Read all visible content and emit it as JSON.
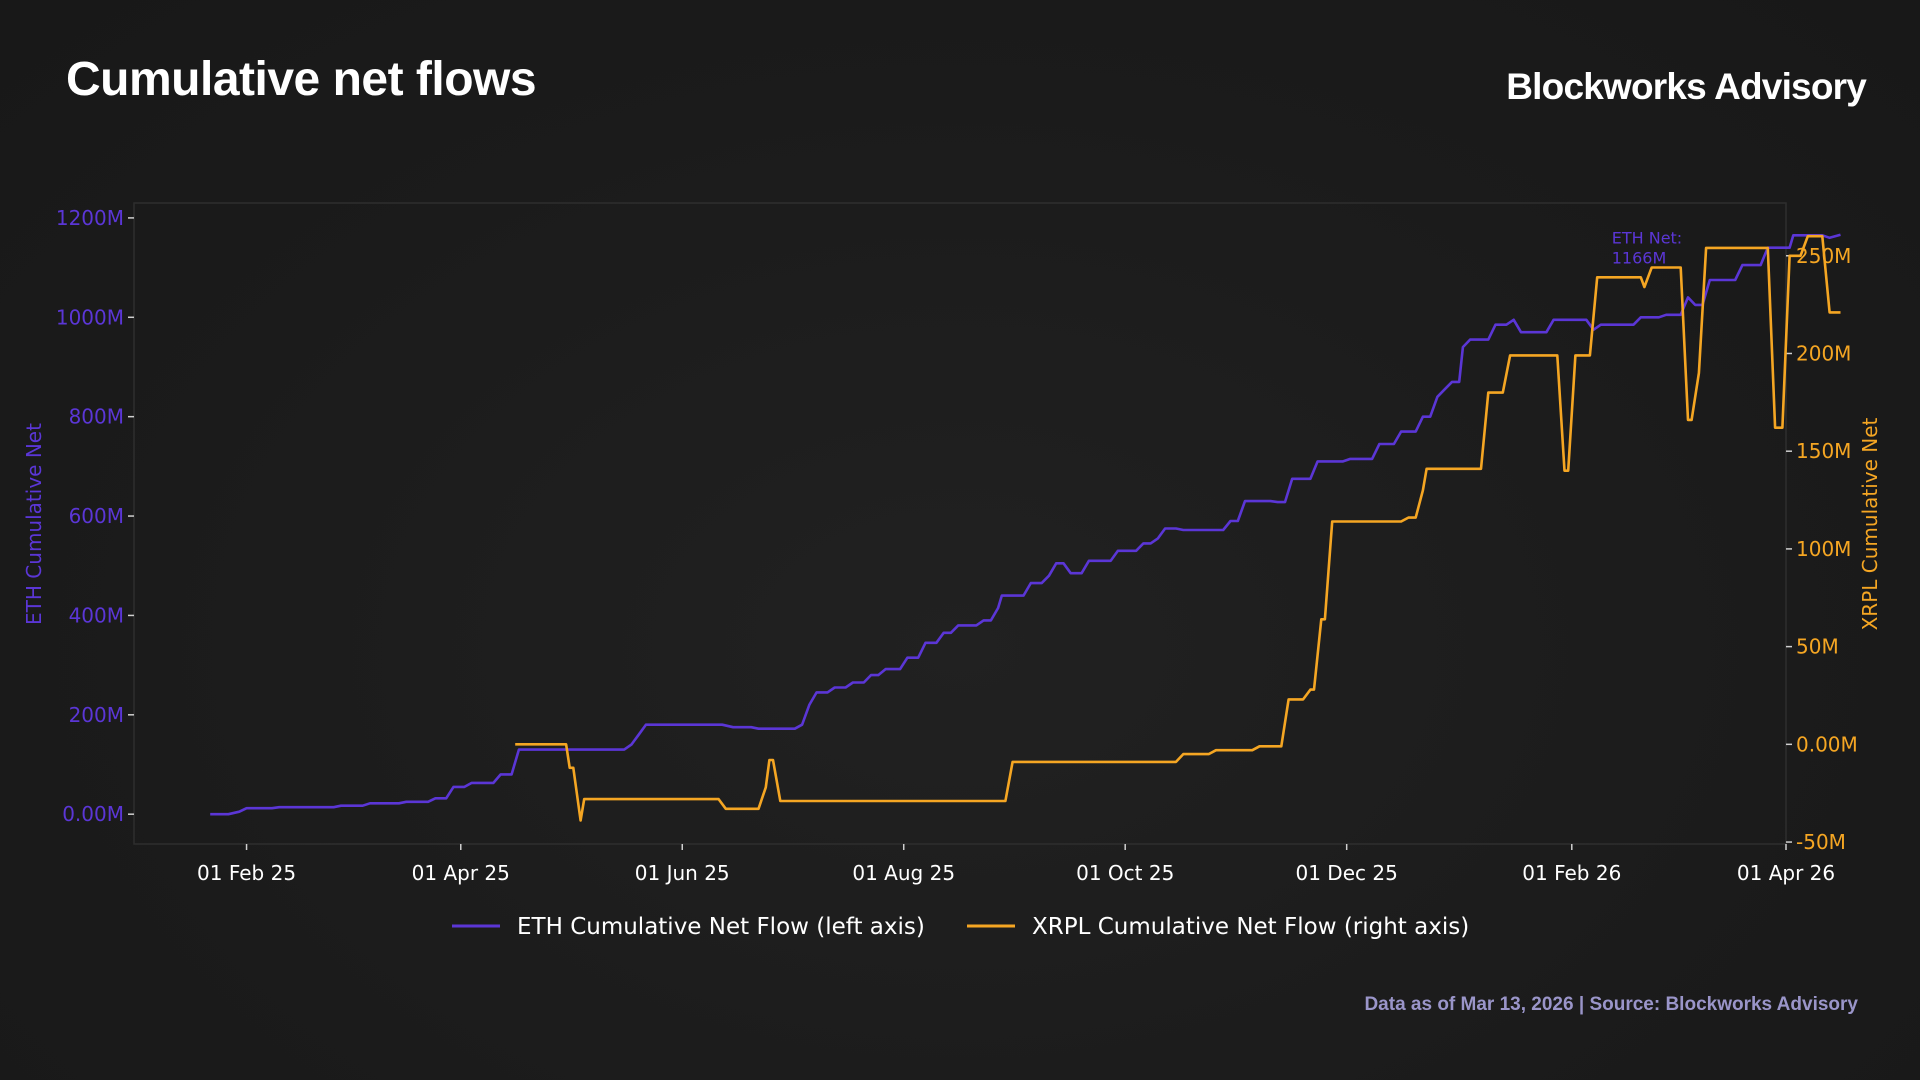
{
  "header": {
    "title": "Cumulative net flows",
    "brand": "Blockworks Advisory"
  },
  "footer": {
    "note": "Data as of Mar 13, 2026 | Source: Blockworks Advisory"
  },
  "colors": {
    "eth": "#5b36d6",
    "xrpl": "#f5a623",
    "axis": "#cfcfcf",
    "frame": "#2e2e2e",
    "background": "#1c1c1c"
  },
  "chart_data": {
    "type": "line",
    "x_axis": {
      "type": "date",
      "ticks": [
        "2025-02-01",
        "2025-04-01",
        "2025-06-01",
        "2025-08-01",
        "2025-10-01",
        "2025-12-01",
        "2026-02-01",
        "2026-04-01"
      ],
      "tick_labels": [
        "01 Feb 25",
        "01 Apr 25",
        "01 Jun 25",
        "01 Aug 25",
        "01 Oct 25",
        "01 Dec 25",
        "01 Feb 26",
        "01 Apr 26"
      ],
      "range": [
        "2025-01-01",
        "2026-04-01"
      ]
    },
    "y_left": {
      "label": "ETH Cumulative Net",
      "range": [
        -60,
        1230
      ],
      "ticks": [
        0,
        200,
        400,
        600,
        800,
        1000,
        1200
      ],
      "tick_labels": [
        "0.00M",
        "200M",
        "400M",
        "600M",
        "800M",
        "1000M",
        "1200M"
      ]
    },
    "y_right": {
      "label": "XRPL Cumulative Net",
      "range": [
        -51,
        277
      ],
      "ticks": [
        -50,
        0,
        50,
        100,
        150,
        200,
        250
      ],
      "tick_labels": [
        "-50M",
        "0.00M",
        "50M",
        "100M",
        "150M",
        "200M",
        "250M"
      ]
    },
    "annotation": {
      "line1": "ETH Net:",
      "line2": "1166M",
      "x": "2026-02-12",
      "y": 1148
    },
    "legend_position": "bottom",
    "grid": false,
    "series": [
      {
        "name": "ETH Cumulative Net Flow (left axis)",
        "axis": "left",
        "color": "#5b36d6",
        "points": [
          [
            "2025-01-22",
            0
          ],
          [
            "2025-01-27",
            0
          ],
          [
            "2025-01-30",
            5
          ],
          [
            "2025-02-01",
            12
          ],
          [
            "2025-02-08",
            12
          ],
          [
            "2025-02-10",
            14
          ],
          [
            "2025-02-25",
            14
          ],
          [
            "2025-02-27",
            17
          ],
          [
            "2025-03-05",
            17
          ],
          [
            "2025-03-07",
            22
          ],
          [
            "2025-03-15",
            22
          ],
          [
            "2025-03-17",
            25
          ],
          [
            "2025-03-23",
            25
          ],
          [
            "2025-03-25",
            32
          ],
          [
            "2025-03-28",
            32
          ],
          [
            "2025-03-30",
            55
          ],
          [
            "2025-04-02",
            55
          ],
          [
            "2025-04-04",
            63
          ],
          [
            "2025-04-10",
            63
          ],
          [
            "2025-04-12",
            80
          ],
          [
            "2025-04-15",
            80
          ],
          [
            "2025-04-17",
            130
          ],
          [
            "2025-05-16",
            130
          ],
          [
            "2025-05-18",
            140
          ],
          [
            "2025-05-20",
            160
          ],
          [
            "2025-05-22",
            180
          ],
          [
            "2025-06-12",
            180
          ],
          [
            "2025-06-15",
            175
          ],
          [
            "2025-06-20",
            175
          ],
          [
            "2025-06-22",
            172
          ],
          [
            "2025-07-02",
            172
          ],
          [
            "2025-07-04",
            180
          ],
          [
            "2025-07-06",
            220
          ],
          [
            "2025-07-08",
            245
          ],
          [
            "2025-07-11",
            245
          ],
          [
            "2025-07-13",
            255
          ],
          [
            "2025-07-16",
            255
          ],
          [
            "2025-07-18",
            265
          ],
          [
            "2025-07-21",
            265
          ],
          [
            "2025-07-23",
            280
          ],
          [
            "2025-07-25",
            280
          ],
          [
            "2025-07-27",
            292
          ],
          [
            "2025-07-31",
            292
          ],
          [
            "2025-08-02",
            315
          ],
          [
            "2025-08-05",
            315
          ],
          [
            "2025-08-07",
            345
          ],
          [
            "2025-08-10",
            345
          ],
          [
            "2025-08-12",
            365
          ],
          [
            "2025-08-14",
            365
          ],
          [
            "2025-08-16",
            380
          ],
          [
            "2025-08-21",
            380
          ],
          [
            "2025-08-23",
            390
          ],
          [
            "2025-08-25",
            390
          ],
          [
            "2025-08-27",
            415
          ],
          [
            "2025-08-28",
            440
          ],
          [
            "2025-09-03",
            440
          ],
          [
            "2025-09-05",
            465
          ],
          [
            "2025-09-08",
            465
          ],
          [
            "2025-09-10",
            480
          ],
          [
            "2025-09-12",
            505
          ],
          [
            "2025-09-14",
            505
          ],
          [
            "2025-09-16",
            485
          ],
          [
            "2025-09-19",
            485
          ],
          [
            "2025-09-21",
            510
          ],
          [
            "2025-09-27",
            510
          ],
          [
            "2025-09-29",
            530
          ],
          [
            "2025-10-04",
            530
          ],
          [
            "2025-10-06",
            545
          ],
          [
            "2025-10-08",
            545
          ],
          [
            "2025-10-10",
            555
          ],
          [
            "2025-10-12",
            575
          ],
          [
            "2025-10-15",
            575
          ],
          [
            "2025-10-17",
            572
          ],
          [
            "2025-10-28",
            572
          ],
          [
            "2025-10-30",
            590
          ],
          [
            "2025-11-01",
            590
          ],
          [
            "2025-11-03",
            630
          ],
          [
            "2025-11-10",
            630
          ],
          [
            "2025-11-12",
            628
          ],
          [
            "2025-11-14",
            628
          ],
          [
            "2025-11-16",
            675
          ],
          [
            "2025-11-21",
            675
          ],
          [
            "2025-11-23",
            710
          ],
          [
            "2025-11-30",
            710
          ],
          [
            "2025-12-02",
            715
          ],
          [
            "2025-12-08",
            715
          ],
          [
            "2025-12-10",
            745
          ],
          [
            "2025-12-14",
            745
          ],
          [
            "2025-12-16",
            770
          ],
          [
            "2025-12-20",
            770
          ],
          [
            "2025-12-22",
            800
          ],
          [
            "2025-12-24",
            800
          ],
          [
            "2025-12-26",
            840
          ],
          [
            "2025-12-28",
            855
          ],
          [
            "2025-12-30",
            870
          ],
          [
            "2026-01-01",
            870
          ],
          [
            "2026-01-02",
            940
          ],
          [
            "2026-01-04",
            955
          ],
          [
            "2026-01-09",
            955
          ],
          [
            "2026-01-11",
            985
          ],
          [
            "2026-01-14",
            985
          ],
          [
            "2026-01-16",
            995
          ],
          [
            "2026-01-18",
            970
          ],
          [
            "2026-01-25",
            970
          ],
          [
            "2026-01-27",
            995
          ],
          [
            "2026-02-05",
            995
          ],
          [
            "2026-02-07",
            975
          ],
          [
            "2026-02-09",
            985
          ],
          [
            "2026-02-18",
            985
          ],
          [
            "2026-02-20",
            1000
          ],
          [
            "2026-02-25",
            1000
          ],
          [
            "2026-02-27",
            1005
          ],
          [
            "2026-03-03",
            1005
          ],
          [
            "2026-03-05",
            1040
          ],
          [
            "2026-03-07",
            1025
          ],
          [
            "2026-03-09",
            1025
          ],
          [
            "2026-03-11",
            1075
          ],
          [
            "2026-03-18",
            1075
          ],
          [
            "2026-03-20",
            1105
          ],
          [
            "2026-03-25",
            1105
          ],
          [
            "2026-03-27",
            1140
          ],
          [
            "2026-04-02",
            1140
          ],
          [
            "2026-04-03",
            1165
          ],
          [
            "2026-04-11",
            1165
          ],
          [
            "2026-04-13",
            1160
          ],
          [
            "2026-04-16",
            1166
          ]
        ]
      },
      {
        "name": "XRPL Cumulative Net Flow (right axis)",
        "axis": "right",
        "color": "#f5a623",
        "points": [
          [
            "2025-04-16",
            0
          ],
          [
            "2025-04-30",
            0
          ],
          [
            "2025-05-01",
            -12
          ],
          [
            "2025-05-02",
            -12
          ],
          [
            "2025-05-04",
            -39
          ],
          [
            "2025-05-05",
            -28
          ],
          [
            "2025-06-11",
            -28
          ],
          [
            "2025-06-13",
            -33
          ],
          [
            "2025-06-22",
            -33
          ],
          [
            "2025-06-24",
            -22
          ],
          [
            "2025-06-25",
            -8
          ],
          [
            "2025-06-26",
            -8
          ],
          [
            "2025-06-28",
            -29
          ],
          [
            "2025-08-29",
            -29
          ],
          [
            "2025-08-31",
            -9
          ],
          [
            "2025-10-15",
            -9
          ],
          [
            "2025-10-17",
            -5
          ],
          [
            "2025-10-24",
            -5
          ],
          [
            "2025-10-26",
            -3
          ],
          [
            "2025-11-05",
            -3
          ],
          [
            "2025-11-07",
            -1
          ],
          [
            "2025-11-13",
            -1
          ],
          [
            "2025-11-15",
            23
          ],
          [
            "2025-11-19",
            23
          ],
          [
            "2025-11-21",
            28
          ],
          [
            "2025-11-22",
            28
          ],
          [
            "2025-11-24",
            64
          ],
          [
            "2025-11-25",
            64
          ],
          [
            "2025-11-27",
            114
          ],
          [
            "2025-12-16",
            114
          ],
          [
            "2025-12-18",
            116
          ],
          [
            "2025-12-20",
            116
          ],
          [
            "2025-12-22",
            130
          ],
          [
            "2025-12-23",
            141
          ],
          [
            "2026-01-07",
            141
          ],
          [
            "2026-01-09",
            180
          ],
          [
            "2026-01-13",
            180
          ],
          [
            "2026-01-15",
            199
          ],
          [
            "2026-01-28",
            199
          ],
          [
            "2026-01-30",
            140
          ],
          [
            "2026-01-31",
            140
          ],
          [
            "2026-02-02",
            199
          ],
          [
            "2026-02-06",
            199
          ],
          [
            "2026-02-08",
            239
          ],
          [
            "2026-02-20",
            239
          ],
          [
            "2026-02-21",
            234
          ],
          [
            "2026-02-23",
            244
          ],
          [
            "2026-03-03",
            244
          ],
          [
            "2026-03-05",
            166
          ],
          [
            "2026-03-06",
            166
          ],
          [
            "2026-03-08",
            190
          ],
          [
            "2026-03-10",
            254
          ],
          [
            "2026-03-27",
            254
          ],
          [
            "2026-03-29",
            162
          ],
          [
            "2026-03-31",
            162
          ],
          [
            "2026-04-02",
            250
          ],
          [
            "2026-04-05",
            250
          ],
          [
            "2026-04-07",
            260
          ],
          [
            "2026-04-11",
            260
          ],
          [
            "2026-04-13",
            221
          ],
          [
            "2026-04-16",
            221
          ]
        ]
      }
    ]
  },
  "legend": {
    "eth": "ETH Cumulative Net Flow (left axis)",
    "xrpl": "XRPL Cumulative Net Flow (right axis)"
  }
}
